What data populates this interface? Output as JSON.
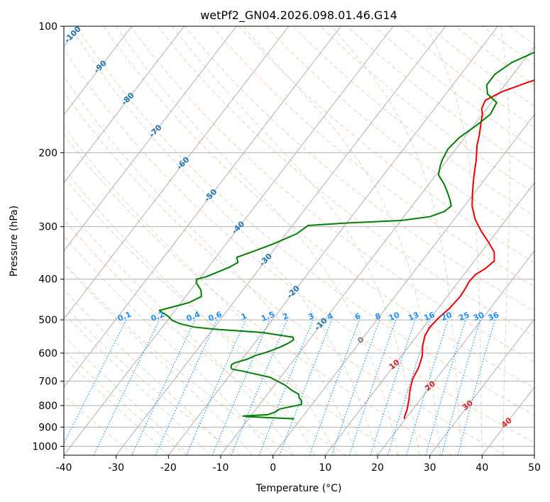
{
  "chart_data": {
    "type": "line",
    "title": "wetPf2_GN04.2026.098.01.46.G14",
    "xlabel": "Temperature (°C)",
    "ylabel": "Pressure (hPa)",
    "xlim": [
      -40,
      50
    ],
    "ylim": [
      1050,
      100
    ],
    "yscale": "log",
    "grid": true,
    "x_ticks": [
      -40,
      -30,
      -20,
      -10,
      0,
      10,
      20,
      30,
      40,
      50
    ],
    "y_ticks": [
      100,
      200,
      300,
      400,
      500,
      600,
      700,
      800,
      900,
      1000
    ],
    "isotherms": [
      -100,
      -90,
      -80,
      -70,
      -60,
      -50,
      -40,
      -30,
      -20,
      -10
    ],
    "mixing_ratios": [
      "0.1",
      "0.2",
      "0.4",
      "0.6",
      "1",
      "1.5",
      "2",
      "3",
      "4",
      "6",
      "8",
      "10",
      "13",
      "16",
      "20",
      "25",
      "30",
      "36"
    ],
    "moist_adiabat_labels": [
      "0",
      "10",
      "20",
      "30",
      "40"
    ],
    "colors": {
      "temperature": "#ee0000",
      "dewpoint": "#008000",
      "isotherm_label": "#1f77b4",
      "mixing_ratio": "#1e90ff",
      "moist_adiabat_label": "#d62728",
      "dry_adiabat": "#fc8d59",
      "moist_adiabat": "#8fbc8f"
    },
    "series": [
      {
        "points": [
          [
            19.8,
            860
          ],
          [
            19.5,
            850
          ],
          [
            19,
            820
          ],
          [
            18,
            780
          ],
          [
            16.5,
            730
          ],
          [
            15.5,
            690
          ],
          [
            15,
            650
          ],
          [
            14,
            610
          ],
          [
            12.5,
            575
          ],
          [
            11.5,
            545
          ],
          [
            11.2,
            520
          ],
          [
            11.5,
            495
          ],
          [
            12.2,
            470
          ],
          [
            12.5,
            440
          ],
          [
            12.3,
            420
          ],
          [
            12,
            405
          ],
          [
            12.2,
            390
          ],
          [
            13.2,
            378
          ],
          [
            13.8,
            362
          ],
          [
            12.5,
            345
          ],
          [
            10,
            327
          ],
          [
            7,
            308
          ],
          [
            4,
            288
          ],
          [
            1.5,
            268
          ],
          [
            -0.5,
            248
          ],
          [
            -2.5,
            228
          ],
          [
            -4.5,
            208
          ],
          [
            -6.5,
            192
          ],
          [
            -7.5,
            182
          ],
          [
            -9,
            170
          ],
          [
            -10,
            162
          ],
          [
            -11,
            157
          ],
          [
            -11.5,
            150
          ],
          [
            -9.5,
            143
          ],
          [
            -6,
            136
          ],
          [
            -3,
            131
          ],
          [
            -2,
            126
          ],
          [
            -2,
            118
          ],
          [
            -1.5,
            112
          ],
          [
            -0.5,
            106
          ],
          [
            0,
            100
          ]
        ]
      },
      {
        "points": [
          [
            -1.3,
            860
          ],
          [
            -6,
            855
          ],
          [
            -10.5,
            850
          ],
          [
            -11.5,
            847
          ],
          [
            -7,
            841
          ],
          [
            -6,
            830
          ],
          [
            -5.5,
            815
          ],
          [
            -2,
            795
          ],
          [
            -2.5,
            780
          ],
          [
            -3.5,
            765
          ],
          [
            -4,
            752
          ],
          [
            -6,
            735
          ],
          [
            -8,
            715
          ],
          [
            -12,
            685
          ],
          [
            -18,
            663
          ],
          [
            -20.5,
            655
          ],
          [
            -21,
            647
          ],
          [
            -21.2,
            640
          ],
          [
            -21,
            634
          ],
          [
            -19,
            620
          ],
          [
            -18,
            608
          ],
          [
            -16.5,
            598
          ],
          [
            -15.5,
            590
          ],
          [
            -14.5,
            580
          ],
          [
            -13.5,
            568
          ],
          [
            -13,
            558
          ],
          [
            -13.5,
            550
          ],
          [
            -20,
            536
          ],
          [
            -30,
            526
          ],
          [
            -34,
            520
          ],
          [
            -37,
            511
          ],
          [
            -39,
            502
          ],
          [
            -40.5,
            490
          ],
          [
            -43,
            475
          ],
          [
            -38.5,
            455
          ],
          [
            -37,
            440
          ],
          [
            -38,
            425
          ],
          [
            -40,
            408
          ],
          [
            -40.5,
            400
          ],
          [
            -39,
            395
          ],
          [
            -37.5,
            385
          ],
          [
            -36,
            375
          ],
          [
            -35,
            365
          ],
          [
            -36,
            355
          ],
          [
            -34,
            345
          ],
          [
            -31,
            330
          ],
          [
            -28,
            312
          ],
          [
            -27,
            298
          ],
          [
            -20,
            294
          ],
          [
            -10,
            290
          ],
          [
            -5,
            284
          ],
          [
            -3,
            276
          ],
          [
            -2.5,
            268
          ],
          [
            -3.5,
            260
          ],
          [
            -5,
            250
          ],
          [
            -7,
            238
          ],
          [
            -9.5,
            226
          ],
          [
            -10.5,
            215
          ],
          [
            -11,
            208
          ],
          [
            -11.5,
            196
          ],
          [
            -11,
            184
          ],
          [
            -9.5,
            172
          ],
          [
            -8.5,
            162
          ],
          [
            -9,
            152
          ],
          [
            -12,
            145
          ],
          [
            -13.5,
            138
          ],
          [
            -13.5,
            130
          ],
          [
            -12,
            122
          ],
          [
            -9,
            115
          ],
          [
            -6,
            109
          ],
          [
            -4,
            104
          ],
          [
            -3,
            100
          ]
        ]
      }
    ]
  }
}
